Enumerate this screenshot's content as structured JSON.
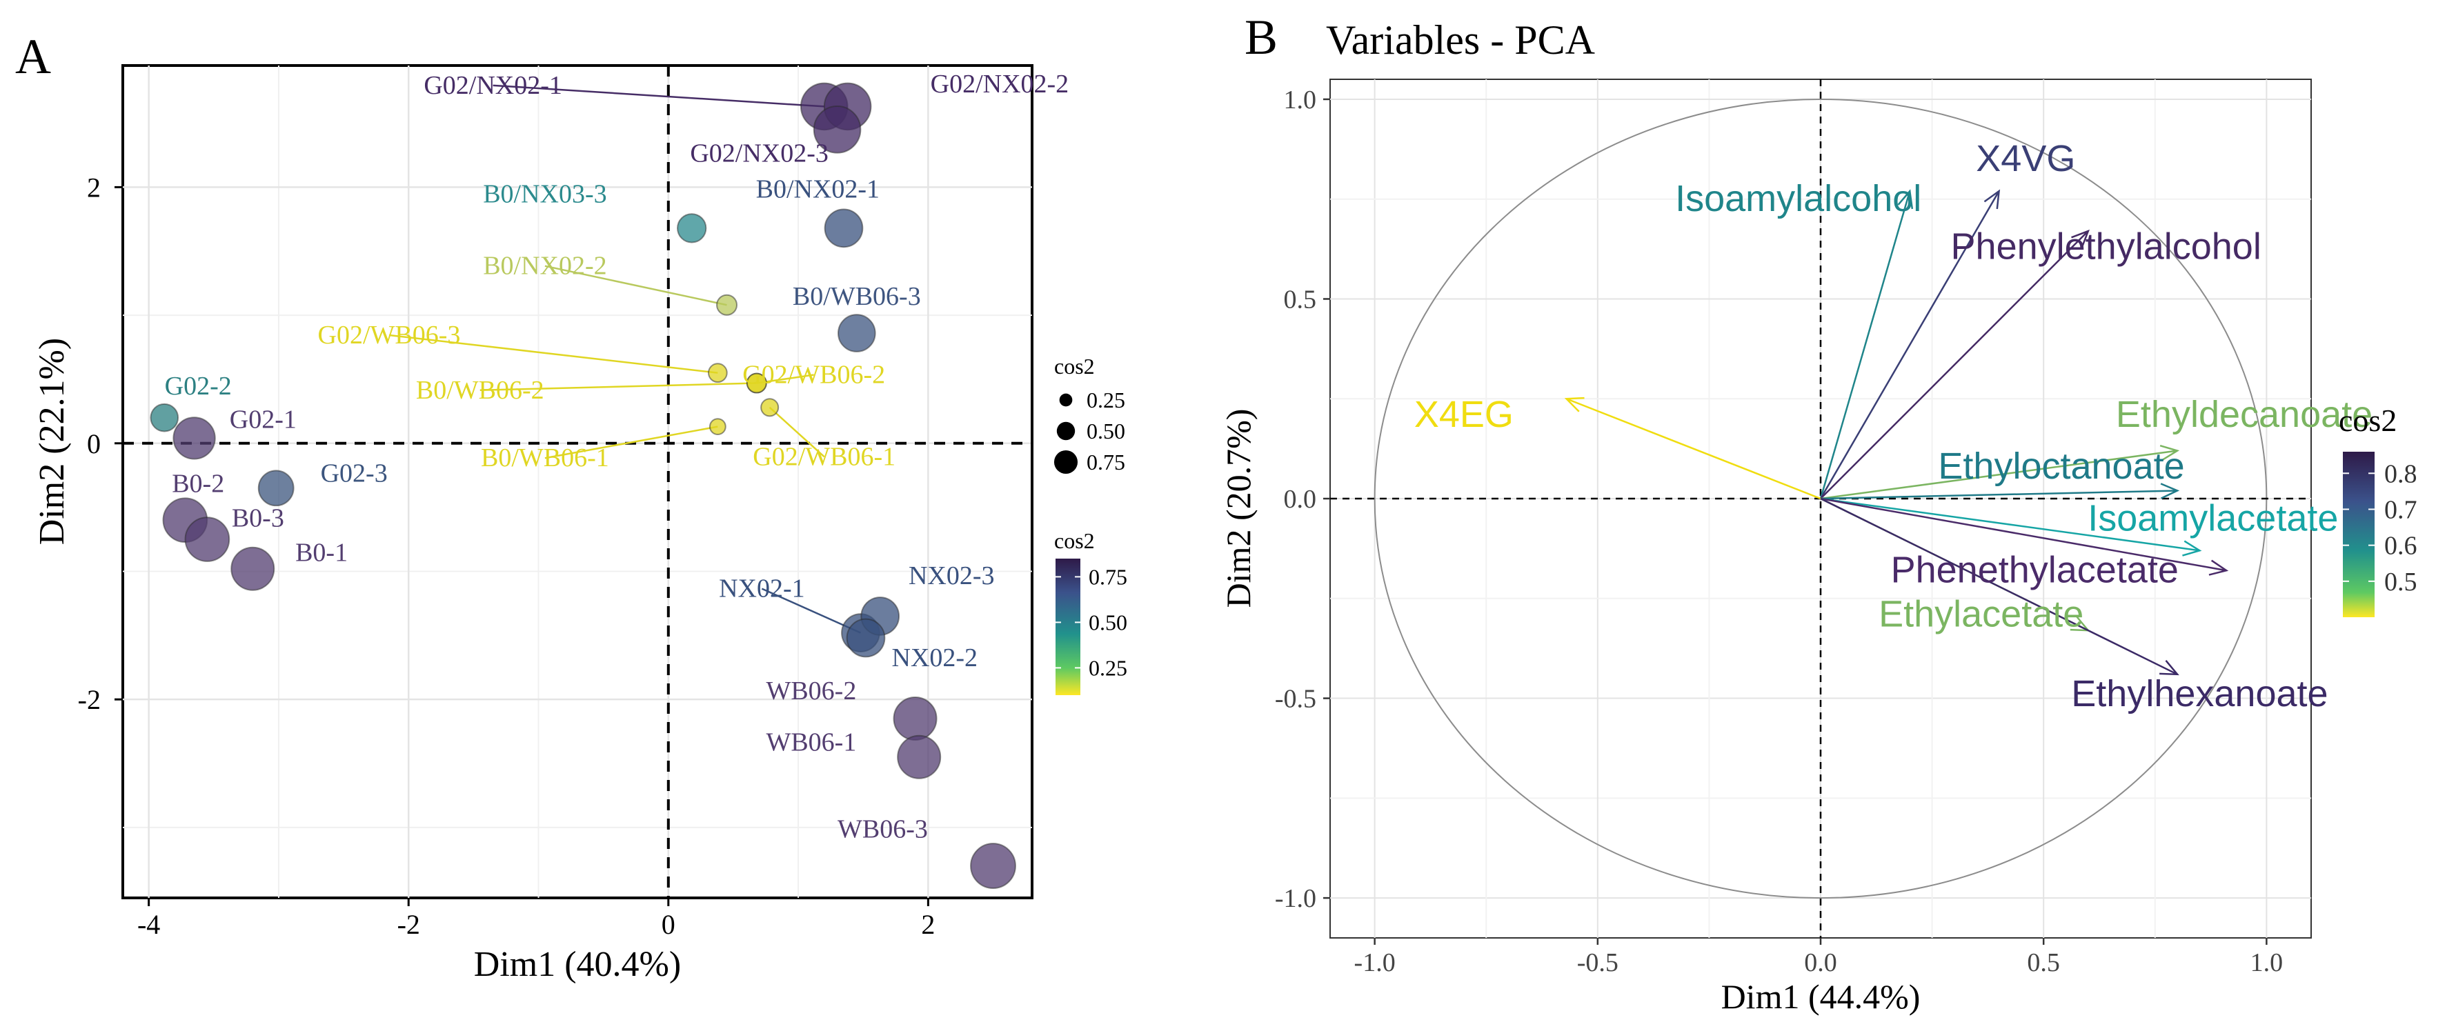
{
  "chart_data": [
    {
      "type": "scatter",
      "panel_label": "A",
      "title": "",
      "xlabel": "Dim1 (40.4%)",
      "ylabel": "Dim2 (22.1%)",
      "xlim": [
        -4.2,
        2.8
      ],
      "ylim": [
        -3.55,
        2.95
      ],
      "xticks": [
        -4,
        -2,
        0,
        2
      ],
      "yticks": [
        -2,
        0,
        2
      ],
      "xtick_labels": [
        "-4",
        "-2",
        "0",
        "2"
      ],
      "ytick_labels": [
        "-2",
        "0",
        "2"
      ],
      "grid": true,
      "reference_lines": "dashed lines at x=0 and y=0",
      "size_legend": {
        "title": "cos2",
        "values": [
          0.25,
          0.5,
          0.75
        ],
        "labels": [
          "0.25",
          "0.50",
          "0.75"
        ]
      },
      "color_legend": {
        "title": "cos2",
        "range": [
          0.1,
          0.85
        ],
        "tick_values": [
          0.25,
          0.5,
          0.75
        ],
        "tick_labels": [
          "0.25",
          "0.50",
          "0.75"
        ]
      },
      "points": [
        {
          "label": "G02/NX02-1",
          "x": 1.2,
          "y": 2.63,
          "cos2": 0.85,
          "color": "#462d66",
          "label_x": -1.35,
          "label_y": 2.73,
          "leader": true
        },
        {
          "label": "G02/NX02-2",
          "x": 1.38,
          "y": 2.63,
          "cos2": 0.85,
          "color": "#462d66",
          "label_x": 2.55,
          "label_y": 2.74,
          "leader": false
        },
        {
          "label": "G02/NX02-3",
          "x": 1.3,
          "y": 2.45,
          "cos2": 0.85,
          "color": "#462d66",
          "label_x": 0.7,
          "label_y": 2.2,
          "leader": false
        },
        {
          "label": "B0/NX03-3",
          "x": 0.18,
          "y": 1.68,
          "cos2": 0.38,
          "color": "#2b8a8d",
          "label_x": -0.95,
          "label_y": 1.88,
          "leader": false
        },
        {
          "label": "B0/NX02-1",
          "x": 1.35,
          "y": 1.68,
          "cos2": 0.62,
          "color": "#39517e",
          "label_x": 1.15,
          "label_y": 1.92,
          "leader": false
        },
        {
          "label": "B0/NX02-2",
          "x": 0.45,
          "y": 1.08,
          "cos2": 0.16,
          "color": "#b9c95e",
          "label_x": -0.95,
          "label_y": 1.32,
          "leader": true
        },
        {
          "label": "B0/WB06-3",
          "x": 1.45,
          "y": 0.86,
          "cos2": 0.6,
          "color": "#3e5580",
          "label_x": 1.45,
          "label_y": 1.08,
          "leader": false
        },
        {
          "label": "G02/WB06-3",
          "x": 0.38,
          "y": 0.55,
          "cos2": 0.12,
          "color": "#e0d623",
          "label_x": -2.15,
          "label_y": 0.78,
          "leader": true
        },
        {
          "label": "G02/WB06-2",
          "x": 0.68,
          "y": 0.47,
          "cos2": 0.14,
          "color": "#e0d623",
          "label_x": 1.12,
          "label_y": 0.47,
          "leader": true
        },
        {
          "label": "B0/WB06-2",
          "x": 0.68,
          "y": 0.47,
          "cos2": 0.14,
          "color": "#e0d623",
          "label_x": -1.45,
          "label_y": 0.35,
          "leader": true
        },
        {
          "label": "B0/WB06-1",
          "x": 0.38,
          "y": 0.13,
          "cos2": 0.05,
          "color": "#e0d623",
          "label_x": -0.95,
          "label_y": -0.18,
          "leader": true
        },
        {
          "label": "G02/WB06-1",
          "x": 0.78,
          "y": 0.28,
          "cos2": 0.09,
          "color": "#e0d623",
          "label_x": 1.2,
          "label_y": -0.17,
          "leader": true
        },
        {
          "label": "G02-2",
          "x": -3.88,
          "y": 0.2,
          "cos2": 0.35,
          "color": "#2c8082",
          "label_x": -3.62,
          "label_y": 0.38,
          "leader": false
        },
        {
          "label": "G02-1",
          "x": -3.65,
          "y": 0.04,
          "cos2": 0.72,
          "color": "#523e70",
          "label_x": -3.12,
          "label_y": 0.12,
          "leader": false
        },
        {
          "label": "G02-3",
          "x": -3.02,
          "y": -0.35,
          "cos2": 0.55,
          "color": "#3c557e",
          "label_x": -2.42,
          "label_y": -0.3,
          "leader": false
        },
        {
          "label": "B0-2",
          "x": -3.72,
          "y": -0.6,
          "cos2": 0.78,
          "color": "#533e70",
          "label_x": -3.62,
          "label_y": -0.38,
          "leader": false
        },
        {
          "label": "B0-3",
          "x": -3.55,
          "y": -0.75,
          "cos2": 0.78,
          "color": "#533e70",
          "label_x": -3.16,
          "label_y": -0.65,
          "leader": false
        },
        {
          "label": "B0-1",
          "x": -3.2,
          "y": -0.98,
          "cos2": 0.75,
          "color": "#533e70",
          "label_x": -2.67,
          "label_y": -0.92,
          "leader": false
        },
        {
          "label": "NX02-1",
          "x": 1.48,
          "y": -1.48,
          "cos2": 0.62,
          "color": "#39517e",
          "label_x": 0.72,
          "label_y": -1.2,
          "leader": true
        },
        {
          "label": "NX02-3",
          "x": 1.63,
          "y": -1.35,
          "cos2": 0.62,
          "color": "#39517e",
          "label_x": 2.18,
          "label_y": -1.1,
          "leader": false
        },
        {
          "label": "NX02-2",
          "x": 1.52,
          "y": -1.52,
          "cos2": 0.62,
          "color": "#39517e",
          "label_x": 2.05,
          "label_y": -1.74,
          "leader": false
        },
        {
          "label": "WB06-2",
          "x": 1.9,
          "y": -2.15,
          "cos2": 0.75,
          "color": "#533e70",
          "label_x": 1.1,
          "label_y": -2.0,
          "leader": false
        },
        {
          "label": "WB06-1",
          "x": 1.93,
          "y": -2.45,
          "cos2": 0.75,
          "color": "#533e70",
          "label_x": 1.1,
          "label_y": -2.4,
          "leader": false
        },
        {
          "label": "WB06-3",
          "x": 2.5,
          "y": -3.3,
          "cos2": 0.8,
          "color": "#533e70",
          "label_x": 1.65,
          "label_y": -3.08,
          "leader": false
        }
      ]
    },
    {
      "type": "biplot",
      "panel_label": "B",
      "title": "Variables - PCA",
      "xlabel": "Dim1 (44.4%)",
      "ylabel": "Dim2 (20.7%)",
      "xlim": [
        -1.1,
        1.1
      ],
      "ylim": [
        -1.1,
        1.05
      ],
      "xticks": [
        -1.0,
        -0.5,
        0.0,
        0.5,
        1.0
      ],
      "yticks": [
        -1.0,
        -0.5,
        0.0,
        0.5,
        1.0
      ],
      "xtick_labels": [
        "-1.0",
        "-0.5",
        "0.0",
        "0.5",
        "1.0"
      ],
      "ytick_labels": [
        "-1.0",
        "-0.5",
        "0.0",
        "0.5",
        "1.0"
      ],
      "grid": true,
      "unit_circle": true,
      "color_legend": {
        "title": "cos2",
        "range": [
          0.4,
          0.86
        ],
        "tick_values": [
          0.5,
          0.6,
          0.7,
          0.8
        ],
        "tick_labels": [
          "0.5",
          "0.6",
          "0.7",
          "0.8"
        ]
      },
      "arrows": [
        {
          "label": "Isoamylalcohol",
          "x": 0.2,
          "y": 0.77,
          "cos2": 0.64,
          "color": "#1f858a",
          "label_x": -0.05,
          "label_y": 0.72
        },
        {
          "label": "X4VG",
          "x": 0.4,
          "y": 0.77,
          "cos2": 0.77,
          "color": "#3a3f75",
          "label_x": 0.46,
          "label_y": 0.82
        },
        {
          "label": "Phenylethylalcohol",
          "x": 0.6,
          "y": 0.67,
          "cos2": 0.81,
          "color": "#452a64",
          "label_x": 0.64,
          "label_y": 0.6
        },
        {
          "label": "X4EG",
          "x": -0.57,
          "y": 0.25,
          "cos2": 0.39,
          "color": "#f0dd10",
          "label_x": -0.8,
          "label_y": 0.18
        },
        {
          "label": "Ethyldecanoate",
          "x": 0.8,
          "y": 0.12,
          "cos2": 0.48,
          "color": "#7bb561",
          "label_x": 0.95,
          "label_y": 0.18
        },
        {
          "label": "Ethyloctanoate",
          "x": 0.8,
          "y": 0.02,
          "cos2": 0.66,
          "color": "#1f7a88",
          "label_x": 0.54,
          "label_y": 0.05
        },
        {
          "label": "Isoamylacetate",
          "x": 0.85,
          "y": -0.13,
          "cos2": 0.6,
          "color": "#16a5a5",
          "label_x": 0.88,
          "label_y": -0.08
        },
        {
          "label": "Phenethylacetate",
          "x": 0.91,
          "y": -0.18,
          "cos2": 0.82,
          "color": "#4a2b69",
          "label_x": 0.48,
          "label_y": -0.21
        },
        {
          "label": "Ethylacetate",
          "x": 0.6,
          "y": -0.33,
          "cos2": 0.5,
          "color": "#7bb561",
          "label_x": 0.36,
          "label_y": -0.32
        },
        {
          "label": "Ethylhexanoate",
          "x": 0.8,
          "y": -0.44,
          "cos2": 0.83,
          "color": "#3b2a66",
          "label_x": 0.85,
          "label_y": -0.52
        }
      ]
    }
  ]
}
